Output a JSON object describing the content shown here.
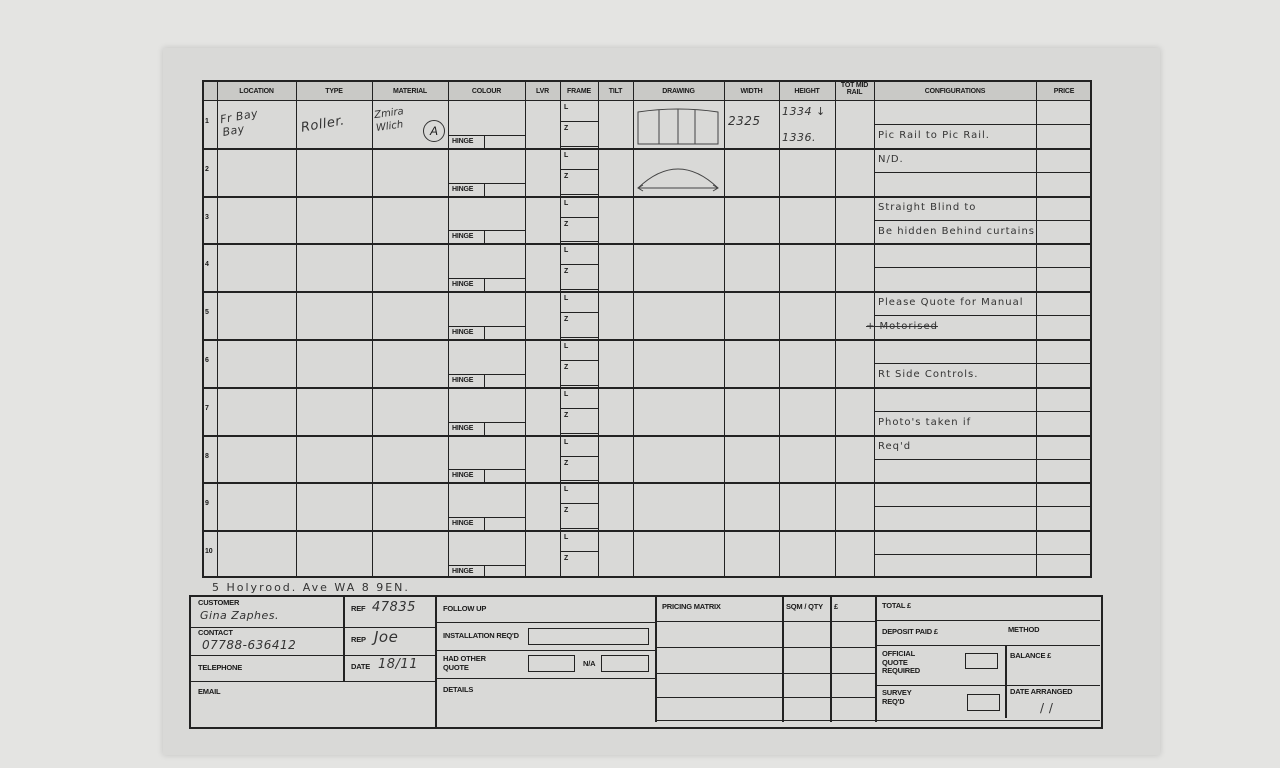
{
  "table": {
    "headers": [
      "LOCATION",
      "TYPE",
      "MATERIAL",
      "COLOUR",
      "LVR",
      "FRAME",
      "TILT",
      "DRAWING",
      "WIDTH",
      "HEIGHT",
      "TOT MID RAIL",
      "CONFIGURATIONS",
      "PRICE"
    ],
    "row_numbers": [
      "1",
      "2",
      "3",
      "4",
      "5",
      "6",
      "7",
      "8",
      "9",
      "10"
    ],
    "hinge_label": "HINGE",
    "frame_labels": [
      "L",
      "Z"
    ],
    "row1": {
      "location": "Fr Bay Bay",
      "type": "Roller.",
      "material": "Zmira Wlich",
      "material_mark": "A",
      "width": "2325",
      "height_top": "1334 ↓",
      "height_bottom": "1336."
    },
    "configurations": [
      "",
      "Pic Rail to Pic Rail.",
      "N/D.",
      "",
      "Straight Blind to",
      "Be hidden Behind curtains",
      "",
      "",
      "Please Quote for Manual",
      "+ Motorised",
      "",
      "Rt Side Controls.",
      "",
      "Photo's taken if",
      "Req'd"
    ]
  },
  "address": "5  Holyrood.  Ave   WA 8  9EN.",
  "customer": {
    "customer_label": "CUSTOMER",
    "customer_value": "Gina  Zaphes.",
    "ref_label": "REF",
    "ref_value": "47835",
    "contact_label": "CONTACT",
    "contact_value": "07788-636412",
    "rep_label": "REP",
    "rep_value": "Joe",
    "telephone_label": "TELEPHONE",
    "date_label": "DATE",
    "date_value": "18/11",
    "email_label": "EMAIL"
  },
  "followup": {
    "follow_up": "FOLLOW UP",
    "installation": "INSTALLATION REQ'D",
    "had_other_quote": "HAD OTHER QUOTE",
    "na": "N/A",
    "details": "DETAILS"
  },
  "pricing": {
    "pricing_matrix": "PRICING MATRIX",
    "sqm_qty": "SQM / QTY",
    "currency": "£"
  },
  "totals": {
    "total": "TOTAL £",
    "deposit": "DEPOSIT PAID £",
    "method": "METHOD",
    "official_quote": "OFFICIAL QUOTE REQUIRED",
    "balance": "BALANCE £",
    "survey": "SURVEY REQ'D",
    "date_arranged": "DATE ARRANGED",
    "date_arranged_value": "/     /"
  }
}
